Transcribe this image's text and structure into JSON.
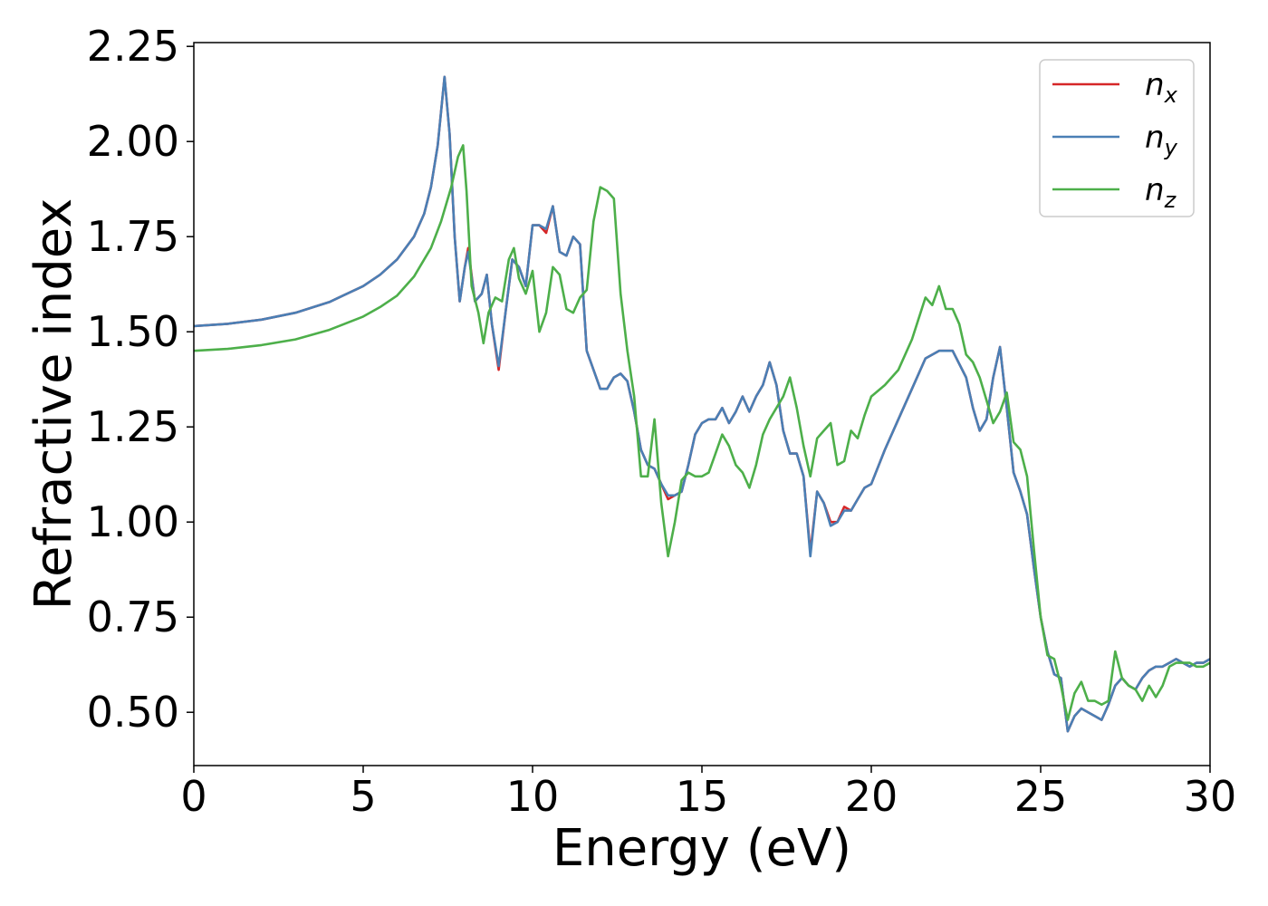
{
  "chart_data": {
    "type": "line",
    "xlabel": "Energy (eV)",
    "ylabel": "Refractive index",
    "xlim": [
      0,
      30
    ],
    "ylim": [
      0.36,
      2.26
    ],
    "xticks": [
      0,
      5,
      10,
      15,
      20,
      25,
      30
    ],
    "xtick_labels": [
      "0",
      "5",
      "10",
      "15",
      "20",
      "25",
      "30"
    ],
    "yticks": [
      0.5,
      0.75,
      1.0,
      1.25,
      1.5,
      1.75,
      2.0,
      2.25
    ],
    "ytick_labels": [
      "0.50",
      "0.75",
      "1.00",
      "1.25",
      "1.50",
      "1.75",
      "2.00",
      "2.25"
    ],
    "grid": false,
    "legend_position": "top-right",
    "series": [
      {
        "name": "n_x",
        "label_base": "n",
        "label_sub": "x",
        "color": "#d62728",
        "x": [
          0,
          1,
          2,
          3,
          4,
          5,
          5.5,
          6,
          6.5,
          6.8,
          7.0,
          7.2,
          7.4,
          7.55,
          7.7,
          7.85,
          8.0,
          8.1,
          8.3,
          8.5,
          8.65,
          8.8,
          9.0,
          9.2,
          9.4,
          9.6,
          9.8,
          10.0,
          10.2,
          10.4,
          10.6,
          10.8,
          11.0,
          11.2,
          11.4,
          11.6,
          11.8,
          12.0,
          12.2,
          12.4,
          12.6,
          12.8,
          13.0,
          13.2,
          13.4,
          13.6,
          13.8,
          14.0,
          14.2,
          14.4,
          14.6,
          14.8,
          15.0,
          15.2,
          15.4,
          15.6,
          15.8,
          16.0,
          16.2,
          16.4,
          16.6,
          16.8,
          17.0,
          17.2,
          17.4,
          17.6,
          17.8,
          18.0,
          18.2,
          18.4,
          18.6,
          18.8,
          19.0,
          19.2,
          19.4,
          19.6,
          19.8,
          20.0,
          20.4,
          20.8,
          21.2,
          21.6,
          22.0,
          22.4,
          22.8,
          23.0,
          23.2,
          23.4,
          23.6,
          23.8,
          24.0,
          24.2,
          24.4,
          24.6,
          24.8,
          25.0,
          25.2,
          25.4,
          25.6,
          25.8,
          26.0,
          26.2,
          26.4,
          26.6,
          26.8,
          27.0,
          27.2,
          27.4,
          27.6,
          27.8,
          28.0,
          28.2,
          28.4,
          28.6,
          28.8,
          29.0,
          29.2,
          29.4,
          29.6,
          29.8,
          30.0
        ],
        "y": [
          1.515,
          1.521,
          1.532,
          1.55,
          1.578,
          1.62,
          1.65,
          1.69,
          1.75,
          1.81,
          1.88,
          1.99,
          2.17,
          2.02,
          1.75,
          1.58,
          1.67,
          1.72,
          1.58,
          1.6,
          1.65,
          1.52,
          1.4,
          1.55,
          1.69,
          1.67,
          1.62,
          1.78,
          1.78,
          1.76,
          1.83,
          1.71,
          1.7,
          1.75,
          1.73,
          1.45,
          1.4,
          1.35,
          1.35,
          1.38,
          1.39,
          1.37,
          1.29,
          1.19,
          1.15,
          1.14,
          1.1,
          1.06,
          1.07,
          1.08,
          1.15,
          1.23,
          1.26,
          1.27,
          1.27,
          1.3,
          1.26,
          1.29,
          1.33,
          1.29,
          1.33,
          1.36,
          1.42,
          1.36,
          1.24,
          1.18,
          1.18,
          1.12,
          0.92,
          1.08,
          1.05,
          1.0,
          1.0,
          1.04,
          1.03,
          1.06,
          1.09,
          1.1,
          1.19,
          1.27,
          1.35,
          1.43,
          1.45,
          1.45,
          1.38,
          1.3,
          1.24,
          1.27,
          1.38,
          1.46,
          1.3,
          1.13,
          1.08,
          1.02,
          0.88,
          0.75,
          0.66,
          0.6,
          0.59,
          0.45,
          0.49,
          0.51,
          0.5,
          0.49,
          0.48,
          0.52,
          0.57,
          0.59,
          0.57,
          0.56,
          0.59,
          0.61,
          0.62,
          0.62,
          0.63,
          0.64,
          0.63,
          0.62,
          0.63,
          0.63,
          0.64
        ]
      },
      {
        "name": "n_y",
        "label_base": "n",
        "label_sub": "y",
        "color": "#4a7fb5",
        "x": [
          0,
          1,
          2,
          3,
          4,
          5,
          5.5,
          6,
          6.5,
          6.8,
          7.0,
          7.2,
          7.4,
          7.55,
          7.7,
          7.85,
          8.0,
          8.1,
          8.3,
          8.5,
          8.65,
          8.8,
          9.0,
          9.2,
          9.4,
          9.6,
          9.8,
          10.0,
          10.2,
          10.4,
          10.6,
          10.8,
          11.0,
          11.2,
          11.4,
          11.6,
          11.8,
          12.0,
          12.2,
          12.4,
          12.6,
          12.8,
          13.0,
          13.2,
          13.4,
          13.6,
          13.8,
          14.0,
          14.2,
          14.4,
          14.6,
          14.8,
          15.0,
          15.2,
          15.4,
          15.6,
          15.8,
          16.0,
          16.2,
          16.4,
          16.6,
          16.8,
          17.0,
          17.2,
          17.4,
          17.6,
          17.8,
          18.0,
          18.2,
          18.4,
          18.6,
          18.8,
          19.0,
          19.2,
          19.4,
          19.6,
          19.8,
          20.0,
          20.4,
          20.8,
          21.2,
          21.6,
          22.0,
          22.4,
          22.8,
          23.0,
          23.2,
          23.4,
          23.6,
          23.8,
          24.0,
          24.2,
          24.4,
          24.6,
          24.8,
          25.0,
          25.2,
          25.4,
          25.6,
          25.8,
          26.0,
          26.2,
          26.4,
          26.6,
          26.8,
          27.0,
          27.2,
          27.4,
          27.6,
          27.8,
          28.0,
          28.2,
          28.4,
          28.6,
          28.8,
          29.0,
          29.2,
          29.4,
          29.6,
          29.8,
          30.0
        ],
        "y": [
          1.515,
          1.521,
          1.532,
          1.55,
          1.578,
          1.62,
          1.65,
          1.69,
          1.75,
          1.81,
          1.88,
          1.99,
          2.17,
          2.02,
          1.75,
          1.58,
          1.67,
          1.71,
          1.58,
          1.6,
          1.65,
          1.52,
          1.41,
          1.55,
          1.69,
          1.67,
          1.62,
          1.78,
          1.78,
          1.77,
          1.83,
          1.71,
          1.7,
          1.75,
          1.73,
          1.45,
          1.4,
          1.35,
          1.35,
          1.38,
          1.39,
          1.37,
          1.29,
          1.19,
          1.15,
          1.14,
          1.1,
          1.07,
          1.07,
          1.08,
          1.15,
          1.23,
          1.26,
          1.27,
          1.27,
          1.3,
          1.26,
          1.29,
          1.33,
          1.29,
          1.33,
          1.36,
          1.42,
          1.36,
          1.24,
          1.18,
          1.18,
          1.12,
          0.91,
          1.08,
          1.05,
          0.99,
          1.0,
          1.03,
          1.03,
          1.06,
          1.09,
          1.1,
          1.19,
          1.27,
          1.35,
          1.43,
          1.45,
          1.45,
          1.38,
          1.3,
          1.24,
          1.27,
          1.38,
          1.46,
          1.3,
          1.13,
          1.08,
          1.02,
          0.88,
          0.75,
          0.66,
          0.6,
          0.59,
          0.45,
          0.49,
          0.51,
          0.5,
          0.49,
          0.48,
          0.52,
          0.57,
          0.59,
          0.57,
          0.56,
          0.59,
          0.61,
          0.62,
          0.62,
          0.63,
          0.64,
          0.63,
          0.62,
          0.63,
          0.63,
          0.64
        ]
      },
      {
        "name": "n_z",
        "label_base": "n",
        "label_sub": "z",
        "color": "#4daf4a",
        "x": [
          0,
          1,
          2,
          3,
          4,
          5,
          5.5,
          6,
          6.5,
          7.0,
          7.3,
          7.6,
          7.8,
          7.95,
          8.05,
          8.2,
          8.4,
          8.55,
          8.7,
          8.9,
          9.1,
          9.3,
          9.45,
          9.6,
          9.8,
          10.0,
          10.2,
          10.4,
          10.6,
          10.8,
          11.0,
          11.2,
          11.4,
          11.6,
          11.8,
          12.0,
          12.2,
          12.4,
          12.6,
          12.8,
          13.0,
          13.2,
          13.4,
          13.6,
          13.8,
          14.0,
          14.2,
          14.4,
          14.6,
          14.8,
          15.0,
          15.2,
          15.4,
          15.6,
          15.8,
          16.0,
          16.2,
          16.4,
          16.6,
          16.8,
          17.0,
          17.2,
          17.4,
          17.6,
          17.8,
          18.0,
          18.2,
          18.4,
          18.6,
          18.8,
          19.0,
          19.2,
          19.4,
          19.6,
          19.8,
          20.0,
          20.4,
          20.8,
          21.2,
          21.6,
          21.8,
          22.0,
          22.2,
          22.4,
          22.6,
          22.8,
          23.0,
          23.2,
          23.4,
          23.6,
          23.8,
          24.0,
          24.2,
          24.4,
          24.6,
          24.8,
          25.0,
          25.2,
          25.4,
          25.6,
          25.8,
          26.0,
          26.2,
          26.4,
          26.6,
          26.8,
          27.0,
          27.2,
          27.4,
          27.6,
          27.8,
          28.0,
          28.2,
          28.4,
          28.6,
          28.8,
          29.0,
          29.2,
          29.4,
          29.6,
          29.8,
          30.0
        ],
        "y": [
          1.45,
          1.455,
          1.465,
          1.48,
          1.505,
          1.54,
          1.565,
          1.595,
          1.645,
          1.72,
          1.79,
          1.88,
          1.96,
          1.99,
          1.87,
          1.62,
          1.55,
          1.47,
          1.55,
          1.59,
          1.58,
          1.69,
          1.72,
          1.64,
          1.6,
          1.66,
          1.5,
          1.55,
          1.67,
          1.65,
          1.56,
          1.55,
          1.59,
          1.61,
          1.79,
          1.88,
          1.87,
          1.85,
          1.6,
          1.45,
          1.33,
          1.12,
          1.12,
          1.27,
          1.05,
          0.91,
          1.0,
          1.11,
          1.13,
          1.12,
          1.12,
          1.13,
          1.18,
          1.23,
          1.2,
          1.15,
          1.13,
          1.09,
          1.15,
          1.23,
          1.27,
          1.3,
          1.33,
          1.38,
          1.3,
          1.2,
          1.12,
          1.22,
          1.24,
          1.26,
          1.15,
          1.16,
          1.24,
          1.22,
          1.28,
          1.33,
          1.36,
          1.4,
          1.48,
          1.59,
          1.57,
          1.62,
          1.56,
          1.56,
          1.52,
          1.44,
          1.42,
          1.38,
          1.32,
          1.26,
          1.29,
          1.34,
          1.21,
          1.19,
          1.12,
          0.93,
          0.75,
          0.65,
          0.64,
          0.57,
          0.48,
          0.55,
          0.58,
          0.53,
          0.53,
          0.52,
          0.53,
          0.66,
          0.59,
          0.57,
          0.56,
          0.53,
          0.57,
          0.54,
          0.57,
          0.62,
          0.63,
          0.63,
          0.63,
          0.62,
          0.62,
          0.63
        ]
      }
    ]
  }
}
